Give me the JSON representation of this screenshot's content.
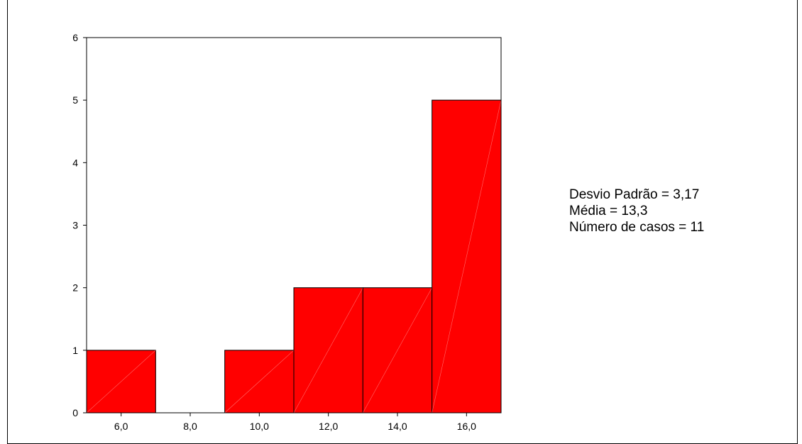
{
  "chart_data": {
    "type": "bar",
    "subtype": "histogram",
    "title": "",
    "xlabel": "",
    "ylabel": "",
    "bins": [
      {
        "x0": 5,
        "x1": 7,
        "count": 1
      },
      {
        "x0": 7,
        "x1": 9,
        "count": 0
      },
      {
        "x0": 9,
        "x1": 11,
        "count": 1
      },
      {
        "x0": 11,
        "x1": 13,
        "count": 2
      },
      {
        "x0": 13,
        "x1": 15,
        "count": 2
      },
      {
        "x0": 15,
        "x1": 17,
        "count": 5
      }
    ],
    "xlim": [
      5,
      17
    ],
    "ylim": [
      0,
      6
    ],
    "x_ticks": [
      6,
      8,
      10,
      12,
      14,
      16
    ],
    "x_tick_labels": [
      "6,0",
      "8,0",
      "10,0",
      "12,0",
      "14,0",
      "16,0"
    ],
    "y_ticks": [
      0,
      1,
      2,
      3,
      4,
      5,
      6
    ],
    "y_tick_labels": [
      "0",
      "1",
      "2",
      "3",
      "4",
      "5",
      "6"
    ],
    "bar_color": "#ff0000",
    "grid": false
  },
  "stats": {
    "std_dev": "Desvio Padrão = 3,17",
    "mean": "Média = 13,3",
    "n_cases": "Número de casos = 11"
  }
}
